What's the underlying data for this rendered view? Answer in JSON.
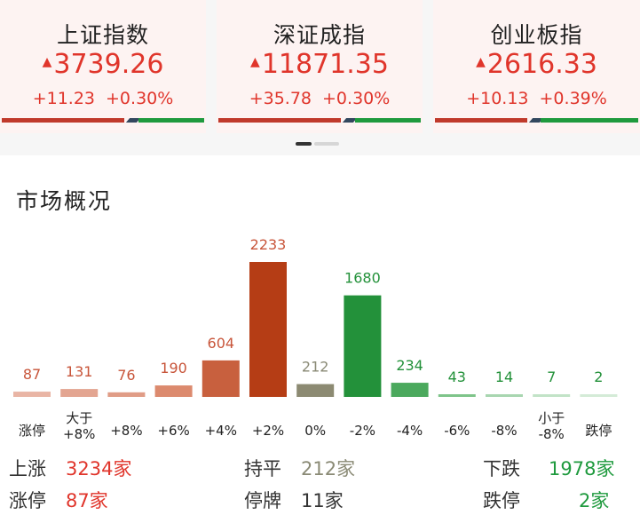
{
  "indices": [
    {
      "name": "上证指数",
      "price": "3739.26",
      "change": "+11.23",
      "pct": "+0.30%",
      "arrow": "▲"
    },
    {
      "name": "深证成指",
      "price": "11871.35",
      "change": "+35.78",
      "pct": "+0.30%",
      "arrow": "▲"
    },
    {
      "name": "创业板指",
      "price": "2616.33",
      "change": "+10.13",
      "pct": "+0.39%",
      "arrow": "▲"
    }
  ],
  "carousel": {
    "pages": 2,
    "active": 0
  },
  "market": {
    "title": "市场概况",
    "stats": {
      "up_label": "上涨",
      "up_value": "3234家",
      "flat_label": "持平",
      "flat_value": "212家",
      "down_label": "下跌",
      "down_value": "1978家",
      "limit_up_label": "涨停",
      "limit_up_value": "87家",
      "suspended_label": "停牌",
      "suspended_value": "11家",
      "limit_down_label": "跌停",
      "limit_down_value": "2家"
    }
  },
  "colors": {
    "red": "#e0352b",
    "green": "#1f9a3e",
    "gray": "#8a8a75"
  },
  "chart_data": {
    "type": "bar",
    "categories": [
      "涨停",
      "大于\n+8%",
      "+8%",
      "+6%",
      "+4%",
      "+2%",
      "0%",
      "-2%",
      "-4%",
      "-6%",
      "-8%",
      "小于\n-8%",
      "跌停"
    ],
    "values": [
      87,
      131,
      76,
      190,
      604,
      2233,
      212,
      1680,
      234,
      43,
      14,
      7,
      2
    ],
    "bar_colors": [
      "#e9b5a5",
      "#e3a591",
      "#e09c86",
      "#dc8a6e",
      "#c8603e",
      "#b53d15",
      "#8c8a72",
      "#23913a",
      "#4ba95d",
      "#7ec48a",
      "#a8d6b0",
      "#c2e3c7",
      "#d4ebd7"
    ],
    "label_colors": [
      "#c8553a",
      "#c8553a",
      "#c8553a",
      "#c8553a",
      "#c8553a",
      "#c8553a",
      "#8a8a75",
      "#23913a",
      "#23913a",
      "#23913a",
      "#23913a",
      "#23913a",
      "#23913a"
    ],
    "title": "",
    "xlabel": "",
    "ylabel": "",
    "ylim": [
      0,
      2233
    ],
    "grid": false
  }
}
